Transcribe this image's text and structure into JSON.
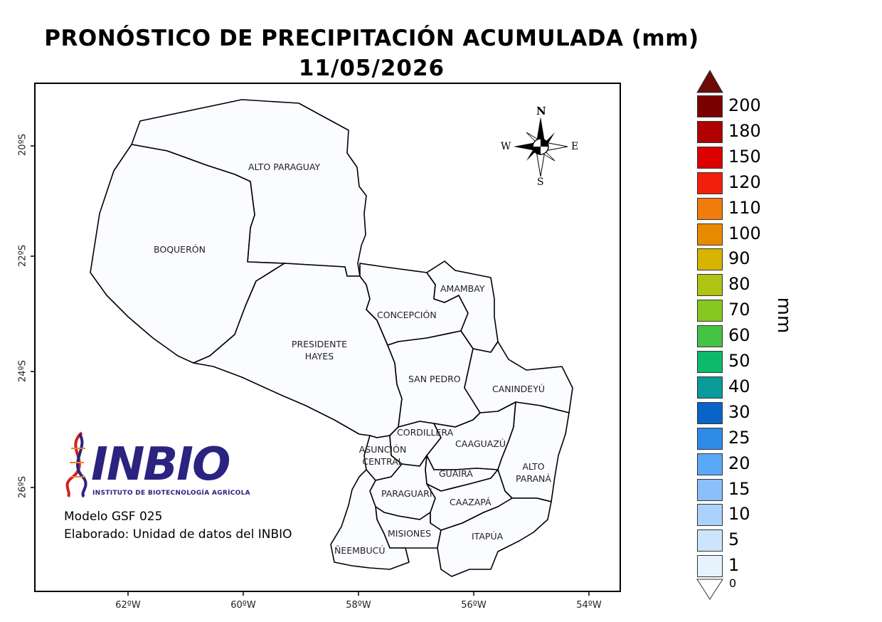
{
  "title_line1": "PRONÓSTICO DE PRECIPITACIÓN ACUMULADA (mm)",
  "title_line2": "11/05/2026",
  "lat_labels": [
    "20ºS",
    "22ºS",
    "24ºS",
    "26ºS"
  ],
  "lon_labels": [
    "62ºW",
    "60ºW",
    "58ºW",
    "56ºW",
    "54ºW"
  ],
  "departments": [
    {
      "name": "ALTO PARAGUAY"
    },
    {
      "name": "BOQUERÓN"
    },
    {
      "name": "PRESIDENTE HAYES"
    },
    {
      "name": "CONCEPCIÓN"
    },
    {
      "name": "AMAMBAY"
    },
    {
      "name": "SAN PEDRO"
    },
    {
      "name": "CANINDEYÚ"
    },
    {
      "name": "CORDILLERA"
    },
    {
      "name": "ASUNCIÓN CENTRAL"
    },
    {
      "name": "CAAGUAZÚ"
    },
    {
      "name": "ALTO PARANÁ"
    },
    {
      "name": "GUAIRÁ"
    },
    {
      "name": "PARAGUARÍ"
    },
    {
      "name": "CAAZAPÁ"
    },
    {
      "name": "MISIONES"
    },
    {
      "name": "ITAPÚA"
    },
    {
      "name": "ÑEEMBUCÚ"
    }
  ],
  "compass": {
    "n": "N",
    "s": "S",
    "e": "E",
    "w": "W"
  },
  "logo": {
    "name": "INBIO",
    "subtitle": "INSTITUTO DE BIOTECNOLOGÍA AGRÍCOLA"
  },
  "model": "Modelo GSF 025",
  "made_by": "Elaborado: Unidad de datos del INBIO",
  "legend": {
    "unit": "mm",
    "top_arrow_color": "#6e0a0a",
    "bottom_value": "0",
    "entries": [
      {
        "value": "200",
        "color": "#7a0000"
      },
      {
        "value": "180",
        "color": "#b00000"
      },
      {
        "value": "150",
        "color": "#dd0000"
      },
      {
        "value": "120",
        "color": "#f0200a"
      },
      {
        "value": "110",
        "color": "#f07c0c"
      },
      {
        "value": "100",
        "color": "#e88a00"
      },
      {
        "value": "90",
        "color": "#d6b400"
      },
      {
        "value": "80",
        "color": "#b0c414"
      },
      {
        "value": "70",
        "color": "#86c820"
      },
      {
        "value": "60",
        "color": "#44c444"
      },
      {
        "value": "50",
        "color": "#0cba6c"
      },
      {
        "value": "40",
        "color": "#0a9a9a"
      },
      {
        "value": "30",
        "color": "#0a64c8"
      },
      {
        "value": "25",
        "color": "#2e8ce8"
      },
      {
        "value": "20",
        "color": "#5aa8f8"
      },
      {
        "value": "15",
        "color": "#8ac0fa"
      },
      {
        "value": "10",
        "color": "#aad2fc"
      },
      {
        "value": "5",
        "color": "#cce4fc"
      },
      {
        "value": "1",
        "color": "#e6f2fe"
      }
    ]
  }
}
